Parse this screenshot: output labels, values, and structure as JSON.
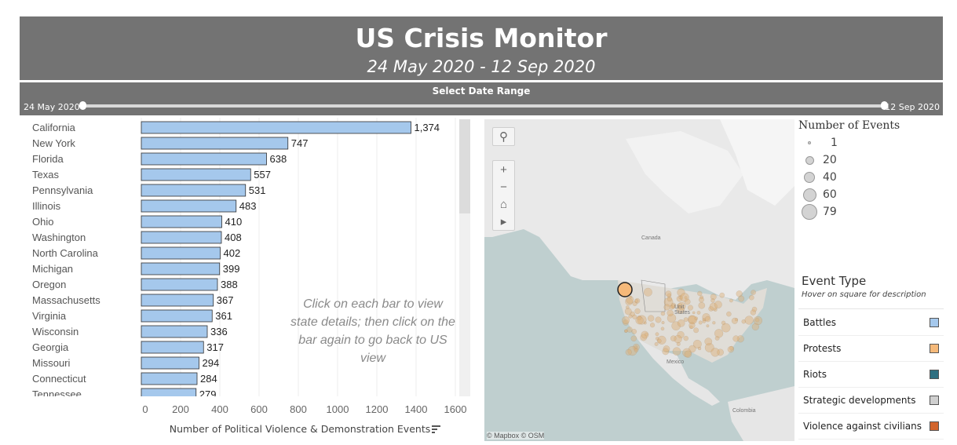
{
  "header": {
    "title": "US Crisis Monitor",
    "subtitle": "24 May 2020 - 12 Sep 2020"
  },
  "date_slider": {
    "title": "Select Date Range",
    "start_label": "24 May 2020",
    "end_label": "12 Sep 2020"
  },
  "chart_note": "Click on each bar to view state details; then click on the bar again to go back to US view",
  "chart_data": {
    "type": "bar",
    "orientation": "horizontal",
    "categories": [
      "California",
      "New York",
      "Florida",
      "Texas",
      "Pennsylvania",
      "Illinois",
      "Ohio",
      "Washington",
      "North Carolina",
      "Michigan",
      "Oregon",
      "Massachusetts",
      "Virginia",
      "Wisconsin",
      "Georgia",
      "Missouri",
      "Connecticut",
      "Tennessee"
    ],
    "values": [
      1374,
      747,
      638,
      557,
      531,
      483,
      410,
      408,
      402,
      399,
      388,
      367,
      361,
      336,
      317,
      294,
      284,
      279
    ],
    "value_labels": [
      "1,374",
      "747",
      "638",
      "557",
      "531",
      "483",
      "410",
      "408",
      "402",
      "399",
      "388",
      "367",
      "361",
      "336",
      "317",
      "294",
      "284",
      "279"
    ],
    "xlabel": "Number of Political Violence & Demonstration Events",
    "ylabel": "",
    "xlim": [
      0,
      1700
    ],
    "xticks": [
      0,
      200,
      400,
      600,
      800,
      1000,
      1200,
      1400,
      1600
    ],
    "grid": true,
    "bar_color": "#a5c8ec",
    "bar_border": "#2f2f2f"
  },
  "map": {
    "labels": {
      "canada": "Canada",
      "us": "Unit\nStates",
      "mexico": "Mexico",
      "colombia": "Colombia"
    },
    "attribution": "© Mapbox  © OSM",
    "highlight_color": "#f5b97a",
    "controls": [
      "search-icon",
      "zoom-in-icon",
      "zoom-out-icon",
      "home-icon",
      "play-icon"
    ]
  },
  "size_legend": {
    "title": "Number of Events",
    "items": [
      {
        "label": "1"
      },
      {
        "label": "20"
      },
      {
        "label": "40"
      },
      {
        "label": "60"
      },
      {
        "label": "79"
      }
    ]
  },
  "type_legend": {
    "title": "Event Type",
    "subtitle": "Hover on square for description",
    "items": [
      {
        "label": "Battles",
        "color": "#a5c8ec"
      },
      {
        "label": "Protests",
        "color": "#f5b97a"
      },
      {
        "label": "Riots",
        "color": "#2e6f80"
      },
      {
        "label": "Strategic developments",
        "color": "#cfcfcf"
      },
      {
        "label": "Violence against civilians",
        "color": "#d2652d"
      }
    ]
  }
}
